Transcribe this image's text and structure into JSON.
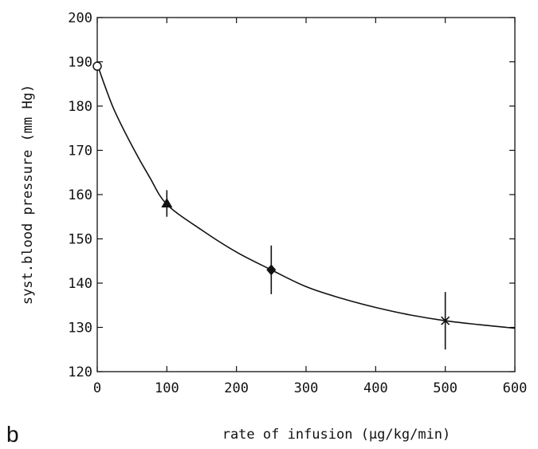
{
  "panel_label": "b",
  "chart_data": {
    "type": "scatter",
    "xlabel": "rate of infusion (µg/kg/min)",
    "ylabel": "syst.blood pressure (mm Hg)",
    "xlim": [
      0,
      600
    ],
    "ylim": [
      120,
      200
    ],
    "x_ticks": [
      "0",
      "100",
      "200",
      "300",
      "400",
      "500",
      "600"
    ],
    "y_ticks": [
      "120",
      "130",
      "140",
      "150",
      "160",
      "170",
      "180",
      "190",
      "200"
    ],
    "grid": false,
    "points": [
      {
        "x": 0,
        "y": 189,
        "err": 0,
        "marker": "circle-open"
      },
      {
        "x": 100,
        "y": 158,
        "err": 3,
        "marker": "triangle-filled"
      },
      {
        "x": 250,
        "y": 143,
        "err": 5.5,
        "marker": "diamond-filled"
      },
      {
        "x": 500,
        "y": 131.5,
        "err": 6.5,
        "marker": "x-cross"
      }
    ],
    "fit_curve": {
      "x": [
        0,
        10,
        25,
        50,
        75,
        100,
        150,
        200,
        250,
        300,
        350,
        400,
        450,
        500,
        550,
        600
      ],
      "y": [
        189.5,
        185,
        178.9,
        171,
        164,
        157.8,
        152,
        147,
        143,
        139.2,
        136.6,
        134.5,
        132.8,
        131.5,
        130.6,
        129.8
      ]
    }
  }
}
